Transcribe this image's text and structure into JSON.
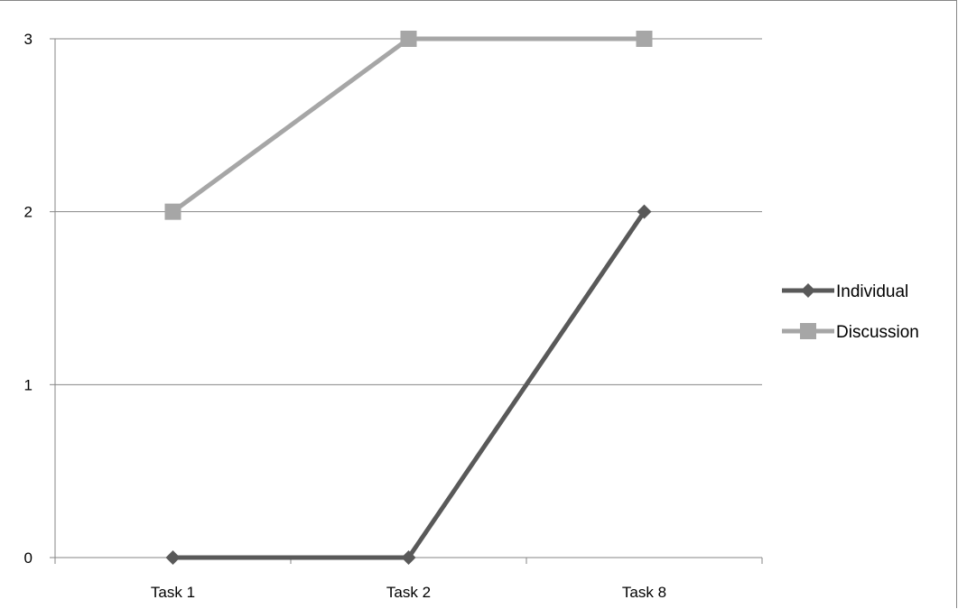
{
  "chart_data": {
    "type": "line",
    "categories": [
      "Task 1",
      "Task 2",
      "Task 8"
    ],
    "series": [
      {
        "name": "Individual",
        "values": [
          0,
          0,
          2
        ],
        "color": "#595959",
        "marker": "diamond"
      },
      {
        "name": "Discussion",
        "values": [
          2,
          3,
          3
        ],
        "color": "#a6a6a6",
        "marker": "square"
      }
    ],
    "yticks": [
      "0",
      "1",
      "2",
      "3"
    ],
    "ylim": [
      0,
      3
    ],
    "grid": true,
    "legend_position": "right"
  }
}
